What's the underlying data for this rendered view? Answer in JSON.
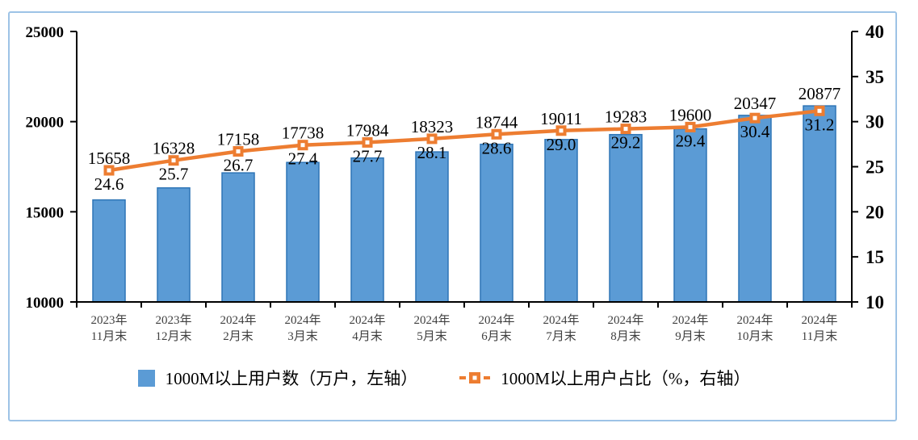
{
  "chart_data": {
    "type": "combo-bar-line",
    "title": "",
    "categories": [
      "2023年11月末",
      "2023年12月末",
      "2024年2月末",
      "2024年3月末",
      "2024年4月末",
      "2024年5月末",
      "2024年6月末",
      "2024年7月末",
      "2024年8月末",
      "2024年9月末",
      "2024年10月末",
      "2024年11月末"
    ],
    "series": [
      {
        "name": "1000M以上用户数（万户，左轴）",
        "type": "bar",
        "axis": "left",
        "values": [
          15658,
          16328,
          17158,
          17738,
          17984,
          18323,
          18744,
          19011,
          19283,
          19600,
          20347,
          20877
        ]
      },
      {
        "name": "1000M以上用户占比（%，右轴）",
        "type": "line",
        "axis": "right",
        "values": [
          24.6,
          25.7,
          26.7,
          27.4,
          27.7,
          28.1,
          28.6,
          29.0,
          29.2,
          29.4,
          30.4,
          31.2
        ]
      }
    ],
    "left_axis": {
      "min": 10000,
      "max": 25000,
      "ticks": [
        25000,
        20000,
        15000,
        10000
      ]
    },
    "right_axis": {
      "min": 10,
      "max": 40,
      "ticks": [
        40,
        35,
        30,
        25,
        20,
        15,
        10
      ]
    },
    "grid": false,
    "legend_position": "bottom",
    "data_labels": true
  },
  "colors": {
    "bar_fill": "#5B9BD5",
    "bar_border": "#2E75B6",
    "line": "#ED7D31",
    "marker_center": "#FFFFFF",
    "axis": "#000000",
    "frame_border": "#9DC3E6",
    "data_label": "#000000",
    "category_label": "#3F3F3F"
  }
}
